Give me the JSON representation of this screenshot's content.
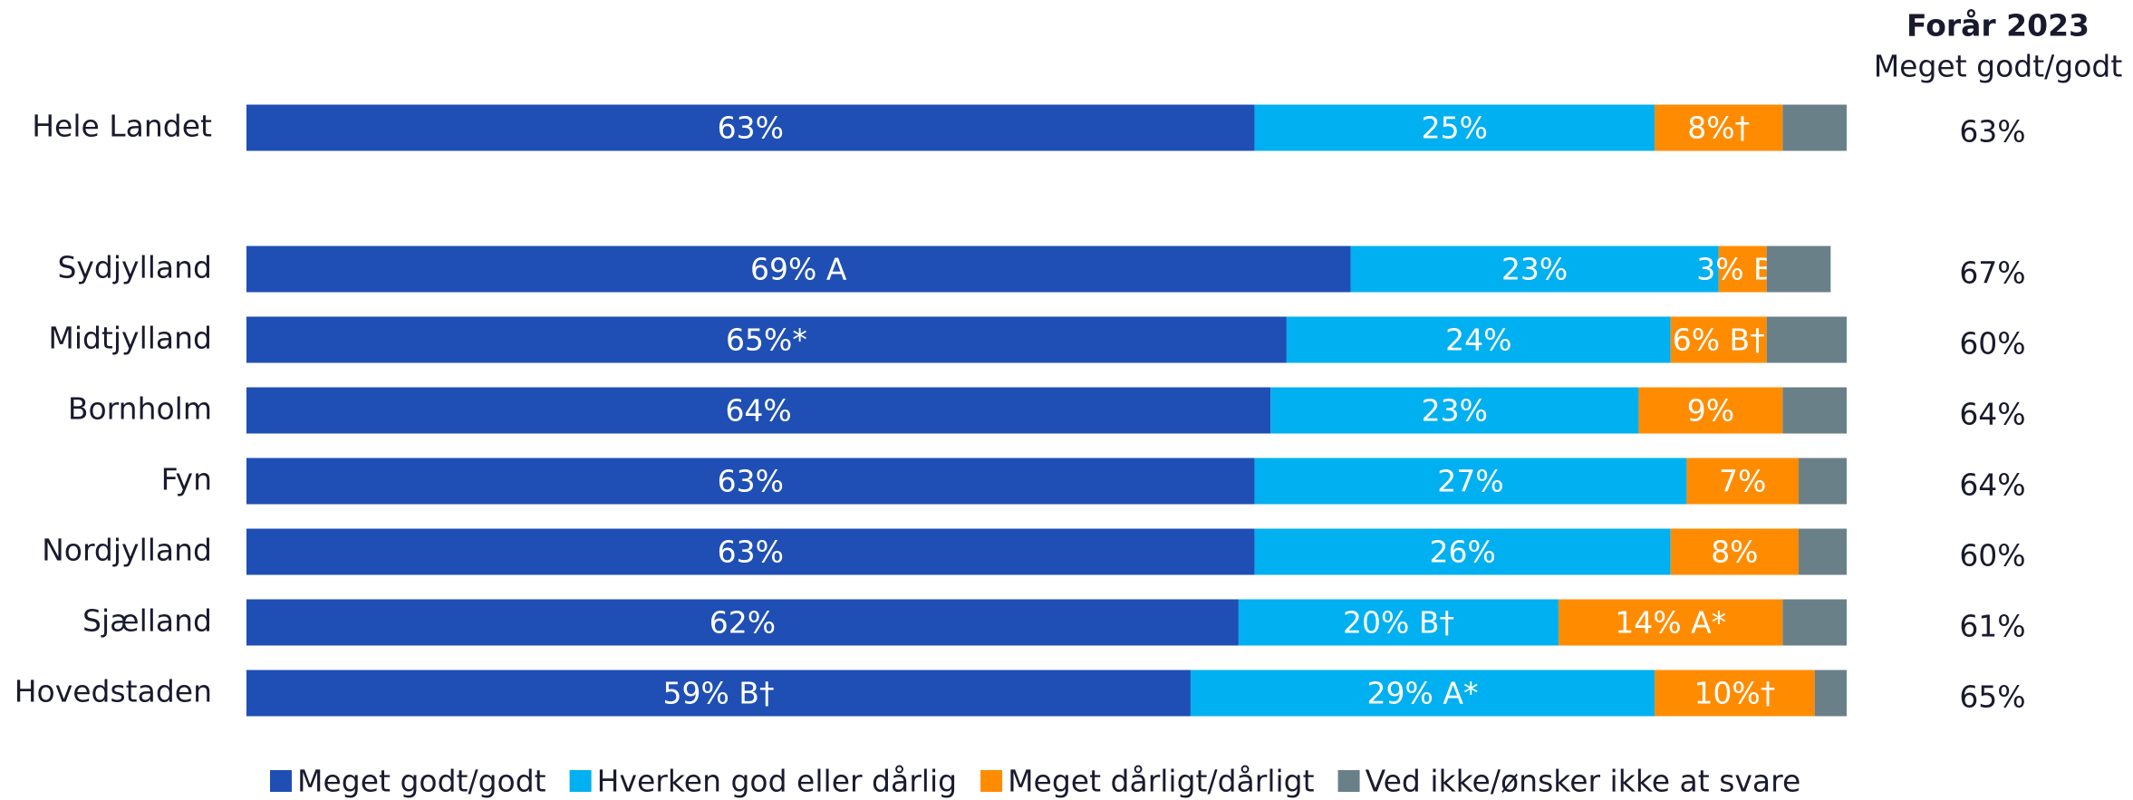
{
  "chart_data": {
    "type": "stacked-bar-horizontal",
    "categories": [
      "Hele Landet",
      "Sydjylland",
      "Midtjylland",
      "Bornholm",
      "Fyn",
      "Nordjylland",
      "Sjælland",
      "Hovedstaden"
    ],
    "xlim": [
      0,
      100
    ],
    "series": [
      {
        "name": "Meget godt/godt",
        "color": "#1f4fb4",
        "values": [
          63,
          69,
          65,
          64,
          63,
          63,
          62,
          59
        ],
        "value_labels": [
          "63%",
          "69% A",
          "65%*",
          "64%",
          "63%",
          "63%",
          "62%",
          "59% B†"
        ]
      },
      {
        "name": "Hverken god eller dårlig",
        "color": "#00b0f0",
        "values": [
          25,
          23,
          24,
          23,
          27,
          26,
          20,
          29
        ],
        "value_labels": [
          "25%",
          "23%",
          "24%",
          "23%",
          "27%",
          "26%",
          "20% B†",
          "29% A*"
        ]
      },
      {
        "name": "Meget dårligt/dårligt",
        "color": "#ff8c00",
        "values": [
          8,
          3,
          6,
          9,
          7,
          8,
          14,
          10
        ],
        "value_labels": [
          "8%†",
          "3% B†",
          "6% B†",
          "9%",
          "7%",
          "8%",
          "14% A*",
          "10%†"
        ]
      },
      {
        "name": "Ved ikke/ønsker ikke at svare",
        "color": "#6a8088",
        "values": [
          4,
          4,
          5,
          4,
          3,
          3,
          4,
          2
        ]
      }
    ],
    "comparison": {
      "title": "Forår 2023",
      "subtitle": "Meget godt/godt",
      "values": [
        63,
        67,
        60,
        64,
        64,
        60,
        61,
        65
      ],
      "value_labels": [
        "63%",
        "67%",
        "60%",
        "64%",
        "64%",
        "60%",
        "61%",
        "65%"
      ]
    }
  }
}
